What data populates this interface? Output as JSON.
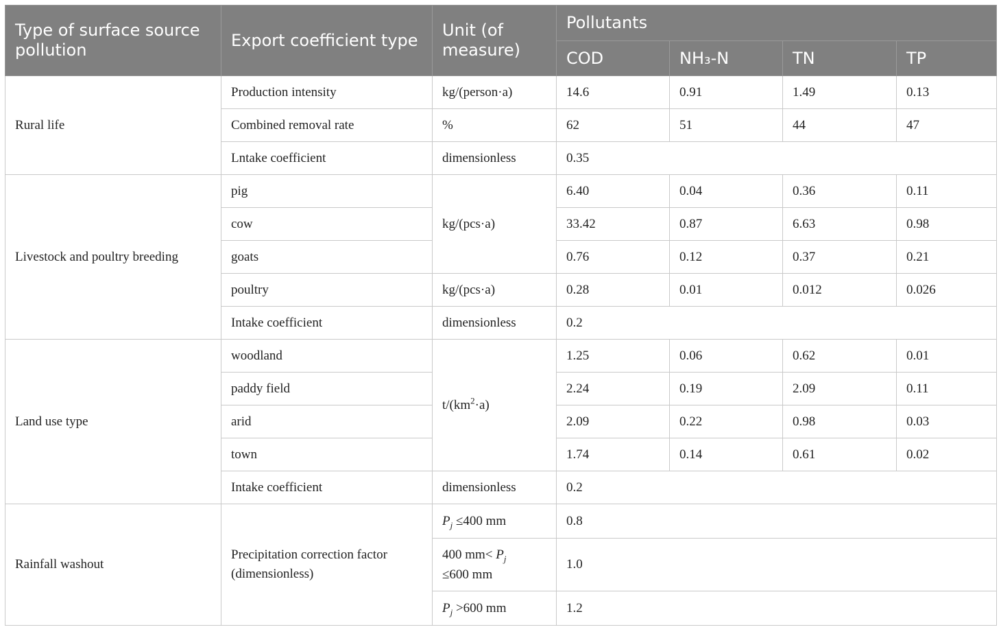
{
  "headers": {
    "type": "Type of surface source pollution",
    "export": "Export coefficient type",
    "unit": "Unit (of measure)",
    "pollutants": "Pollutants",
    "cod": "COD",
    "nh3n": "NH₃-N",
    "tn": "TN",
    "tp": "TP"
  },
  "rural": {
    "label": "Rural life",
    "production": {
      "type": "Production intensity",
      "unit": "kg/(person·a)",
      "values": [
        "14.6",
        "0.91",
        "1.49",
        "0.13"
      ]
    },
    "removal": {
      "type": "Combined removal rate",
      "unit": "%",
      "values": [
        "62",
        "51",
        "44",
        "47"
      ]
    },
    "intake": {
      "type": "Lntake coefficient",
      "unit": "dimensionless",
      "value": "0.35"
    }
  },
  "livestock": {
    "label": "Livestock and poultry breeding",
    "group_unit": "kg/(pcs·a)",
    "pig": {
      "type": "pig",
      "values": [
        "6.40",
        "0.04",
        "0.36",
        "0.11"
      ]
    },
    "cow": {
      "type": "cow",
      "values": [
        "33.42",
        "0.87",
        "6.63",
        "0.98"
      ]
    },
    "goats": {
      "type": "goats",
      "values": [
        "0.76",
        "0.12",
        "0.37",
        "0.21"
      ]
    },
    "poultry": {
      "type": "poultry",
      "unit": "kg/(pcs·a)",
      "values": [
        "0.28",
        "0.01",
        "0.012",
        "0.026"
      ]
    },
    "intake": {
      "type": "Intake coefficient",
      "unit": "dimensionless",
      "value": "0.2"
    }
  },
  "land": {
    "label": "Land use type",
    "unit_pre": "t/(km",
    "unit_sup": "2",
    "unit_post": "·a)",
    "woodland": {
      "type": "woodland",
      "values": [
        "1.25",
        "0.06",
        "0.62",
        "0.01"
      ]
    },
    "paddy": {
      "type": "paddy field",
      "values": [
        "2.24",
        "0.19",
        "2.09",
        "0.11"
      ]
    },
    "arid": {
      "type": "arid",
      "values": [
        "2.09",
        "0.22",
        "0.98",
        "0.03"
      ]
    },
    "town": {
      "type": "town",
      "values": [
        "1.74",
        "0.14",
        "0.61",
        "0.02"
      ]
    },
    "intake": {
      "type": "Intake coefficient",
      "unit": "dimensionless",
      "value": "0.2"
    }
  },
  "rainfall": {
    "label": "Rainfall washout",
    "type": "Precipitation correction factor (dimensionless)",
    "var": "P",
    "var_sub": "j",
    "r1": {
      "cond": "≤400 mm",
      "value": "0.8"
    },
    "r2": {
      "pre": "400 mm<",
      "post": "≤600 mm",
      "value": "1.0"
    },
    "r3": {
      "cond": ">600 mm",
      "value": "1.2"
    }
  }
}
